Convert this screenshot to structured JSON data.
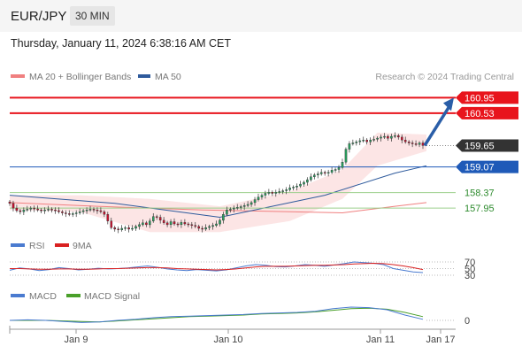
{
  "header": {
    "pair": "EUR/JPY",
    "timeframe": "30 MIN"
  },
  "datetime": "Thursday, January 11, 2024 6:38:16 AM CET",
  "copyright": "Research © 2024 Trading Central",
  "chart_data": [
    {
      "type": "candlestick",
      "legend": [
        {
          "name": "MA 20 + Bollinger Bands",
          "color": "#f08080"
        },
        {
          "name": "MA 50",
          "color": "#2e5a9c"
        }
      ],
      "x_ticks": [
        "Jan 9",
        "Jan 10",
        "Jan 11",
        "Jan 17"
      ],
      "ylim": [
        157.4,
        161.2
      ],
      "price_levels": [
        {
          "value": 160.95,
          "label": "160.95",
          "kind": "resistance",
          "color": "#e8141c"
        },
        {
          "value": 160.53,
          "label": "160.53",
          "kind": "resistance",
          "color": "#e8141c"
        },
        {
          "value": 159.65,
          "label": "159.65",
          "kind": "last",
          "color": "#333333"
        },
        {
          "value": 159.07,
          "label": "159.07",
          "kind": "pivot",
          "color": "#1f5ab8"
        },
        {
          "value": 158.37,
          "label": "158.37",
          "kind": "support",
          "color": "#2e8b2e"
        },
        {
          "value": 157.95,
          "label": "157.95",
          "kind": "support",
          "color": "#2e8b2e"
        }
      ],
      "close_path": [
        158.08,
        157.95,
        157.88,
        157.85,
        157.9,
        157.92,
        157.95,
        157.93,
        157.9,
        157.88,
        157.9,
        157.92,
        157.9,
        157.88,
        157.85,
        157.82,
        157.8,
        157.78,
        157.8,
        157.82,
        157.85,
        157.88,
        157.9,
        157.92,
        157.9,
        157.88,
        157.85,
        157.78,
        157.6,
        157.42,
        157.38,
        157.36,
        157.4,
        157.42,
        157.38,
        157.4,
        157.45,
        157.5,
        157.55,
        157.5,
        157.6,
        157.72,
        157.7,
        157.62,
        157.55,
        157.5,
        157.58,
        157.52,
        157.5,
        157.56,
        157.52,
        157.5,
        157.48,
        157.45,
        157.4,
        157.38,
        157.42,
        157.45,
        157.48,
        157.52,
        157.62,
        157.78,
        157.9,
        157.92,
        157.95,
        157.97,
        157.99,
        158.02,
        158.05,
        158.1,
        158.18,
        158.25,
        158.3,
        158.35,
        158.38,
        158.35,
        158.38,
        158.4,
        158.42,
        158.45,
        158.5,
        158.52,
        158.55,
        158.6,
        158.65,
        158.72,
        158.8,
        158.85,
        158.88,
        158.92,
        158.9,
        158.92,
        158.98,
        159.0,
        159.05,
        159.2,
        159.55,
        159.7,
        159.72,
        159.75,
        159.78,
        159.8,
        159.75,
        159.8,
        159.82,
        159.85,
        159.88,
        159.9,
        159.85,
        159.9,
        159.92,
        159.88,
        159.8,
        159.75,
        159.72,
        159.7,
        159.68,
        159.72,
        159.65
      ],
      "projection": {
        "from": 159.65,
        "to": 160.95
      },
      "ma20": [
        [
          0,
          158.1
        ],
        [
          25,
          158.0
        ],
        [
          55,
          157.9
        ],
        [
          80,
          157.85
        ],
        [
          95,
          157.82
        ],
        [
          110,
          158.0
        ],
        [
          119,
          158.1
        ]
      ],
      "ma50": [
        [
          0,
          158.3
        ],
        [
          30,
          158.08
        ],
        [
          60,
          157.7
        ],
        [
          90,
          158.3
        ],
        [
          110,
          158.9
        ],
        [
          119,
          159.1
        ]
      ],
      "bollinger_upper": [
        [
          0,
          158.3
        ],
        [
          20,
          158.3
        ],
        [
          40,
          158.2
        ],
        [
          60,
          158.0
        ],
        [
          80,
          158.4
        ],
        [
          95,
          159.0
        ],
        [
          105,
          160.0
        ],
        [
          119,
          159.95
        ]
      ],
      "bollinger_lower": [
        [
          0,
          157.9
        ],
        [
          20,
          157.85
        ],
        [
          40,
          157.3
        ],
        [
          60,
          157.3
        ],
        [
          80,
          157.6
        ],
        [
          95,
          158.2
        ],
        [
          105,
          159.1
        ],
        [
          119,
          159.5
        ]
      ]
    },
    {
      "type": "line",
      "legend": [
        {
          "name": "RSI",
          "color": "#4a7bd0"
        },
        {
          "name": "9MA",
          "color": "#d92020"
        }
      ],
      "levels": [
        70,
        50,
        30
      ],
      "rsi": [
        45,
        52,
        49,
        44,
        47,
        53,
        50,
        46,
        48,
        51,
        49,
        50,
        52,
        55,
        58,
        54,
        49,
        46,
        44,
        47,
        45,
        43,
        46,
        52,
        58,
        62,
        60,
        56,
        55,
        58,
        62,
        60,
        57,
        61,
        65,
        70,
        68,
        66,
        62,
        50,
        45,
        40,
        38
      ],
      "ma9": [
        50,
        50,
        49,
        48,
        48,
        49,
        49,
        48,
        48,
        49,
        50,
        50,
        51,
        52,
        53,
        53,
        52,
        50,
        49,
        48,
        47,
        46,
        47,
        49,
        52,
        55,
        57,
        57,
        57,
        58,
        59,
        60,
        60,
        61,
        62,
        64,
        65,
        66,
        65,
        62,
        58,
        53,
        47
      ]
    },
    {
      "type": "line",
      "legend": [
        {
          "name": "MACD",
          "color": "#4a7bd0"
        },
        {
          "name": "MACD Signal",
          "color": "#4aa02a"
        }
      ],
      "levels": [
        0
      ],
      "macd": [
        0.0,
        0.01,
        0.0,
        -0.02,
        -0.04,
        -0.03,
        0.0,
        0.02,
        0.05,
        0.07,
        0.08,
        0.09,
        0.1,
        0.11,
        0.13,
        0.14,
        0.15,
        0.17,
        0.22,
        0.25,
        0.24,
        0.2,
        0.1,
        0.02
      ],
      "signal": [
        0.0,
        0.0,
        0.0,
        -0.01,
        -0.02,
        -0.03,
        -0.01,
        0.01,
        0.03,
        0.05,
        0.07,
        0.08,
        0.09,
        0.1,
        0.12,
        0.13,
        0.14,
        0.16,
        0.19,
        0.22,
        0.23,
        0.21,
        0.15,
        0.07
      ]
    }
  ]
}
